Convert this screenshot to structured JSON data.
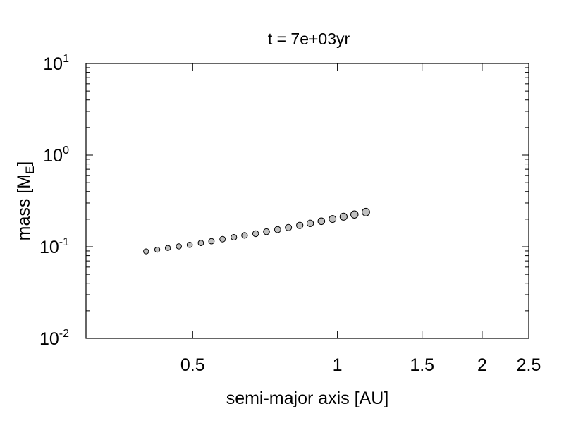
{
  "chart_data": {
    "type": "scatter",
    "title": "t = 7e+03yr",
    "xlabel": "semi-major axis [AU]",
    "ylabel": {
      "main": "mass [M",
      "sub": "E",
      "end": "]"
    },
    "xscale": "log",
    "yscale": "log",
    "xlim": [
      0.3,
      2.5
    ],
    "ylim": [
      0.01,
      10
    ],
    "xticks": [
      {
        "value": 0.5,
        "label": "0.5"
      },
      {
        "value": 1,
        "label": "1"
      },
      {
        "value": 1.5,
        "label": "1.5"
      },
      {
        "value": 2,
        "label": "2"
      },
      {
        "value": 2.5,
        "label": "2.5"
      }
    ],
    "yticks": [
      {
        "value": 0.01,
        "base": "10",
        "exp": "-2"
      },
      {
        "value": 0.1,
        "base": "10",
        "exp": "-1"
      },
      {
        "value": 1,
        "base": "10",
        "exp": "0"
      },
      {
        "value": 10,
        "base": "10",
        "exp": "1"
      }
    ],
    "legend": "none",
    "grid": false,
    "marker_color": "#c0c0c0",
    "marker_edge": "#000000",
    "points": [
      {
        "x": 0.4,
        "y": 0.089
      },
      {
        "x": 0.422,
        "y": 0.093
      },
      {
        "x": 0.444,
        "y": 0.097
      },
      {
        "x": 0.468,
        "y": 0.101
      },
      {
        "x": 0.493,
        "y": 0.105
      },
      {
        "x": 0.52,
        "y": 0.11
      },
      {
        "x": 0.547,
        "y": 0.115
      },
      {
        "x": 0.577,
        "y": 0.121
      },
      {
        "x": 0.609,
        "y": 0.127
      },
      {
        "x": 0.641,
        "y": 0.133
      },
      {
        "x": 0.676,
        "y": 0.139
      },
      {
        "x": 0.712,
        "y": 0.146
      },
      {
        "x": 0.751,
        "y": 0.154
      },
      {
        "x": 0.791,
        "y": 0.162
      },
      {
        "x": 0.835,
        "y": 0.171
      },
      {
        "x": 0.878,
        "y": 0.18
      },
      {
        "x": 0.926,
        "y": 0.19
      },
      {
        "x": 0.977,
        "y": 0.201
      },
      {
        "x": 1.03,
        "y": 0.213
      },
      {
        "x": 1.085,
        "y": 0.225
      },
      {
        "x": 1.146,
        "y": 0.239
      }
    ]
  }
}
